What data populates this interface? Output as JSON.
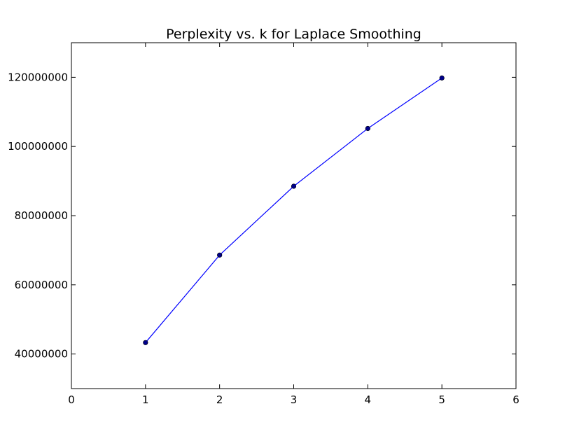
{
  "chart_data": {
    "type": "line",
    "title": "Perplexity vs. k for Laplace Smoothing",
    "xlabel": "",
    "ylabel": "",
    "x": [
      1,
      2,
      3,
      4,
      5
    ],
    "series": [
      {
        "values": [
          43300000,
          68600000,
          88500000,
          105200000,
          119800000
        ],
        "color": "#0000ff",
        "marker_color": "#00008b",
        "marker": "circle"
      }
    ],
    "xlim": [
      0,
      6
    ],
    "ylim": [
      30000000,
      130000000
    ],
    "xticks": [
      0,
      1,
      2,
      3,
      4,
      5,
      6
    ],
    "xtick_labels": [
      "0",
      "1",
      "2",
      "3",
      "4",
      "5",
      "6"
    ],
    "yticks": [
      40000000,
      60000000,
      80000000,
      100000000,
      120000000
    ],
    "ytick_labels": [
      "40000000",
      "60000000",
      "80000000",
      "100000000",
      "120000000"
    ],
    "grid": false,
    "legend": "none"
  }
}
